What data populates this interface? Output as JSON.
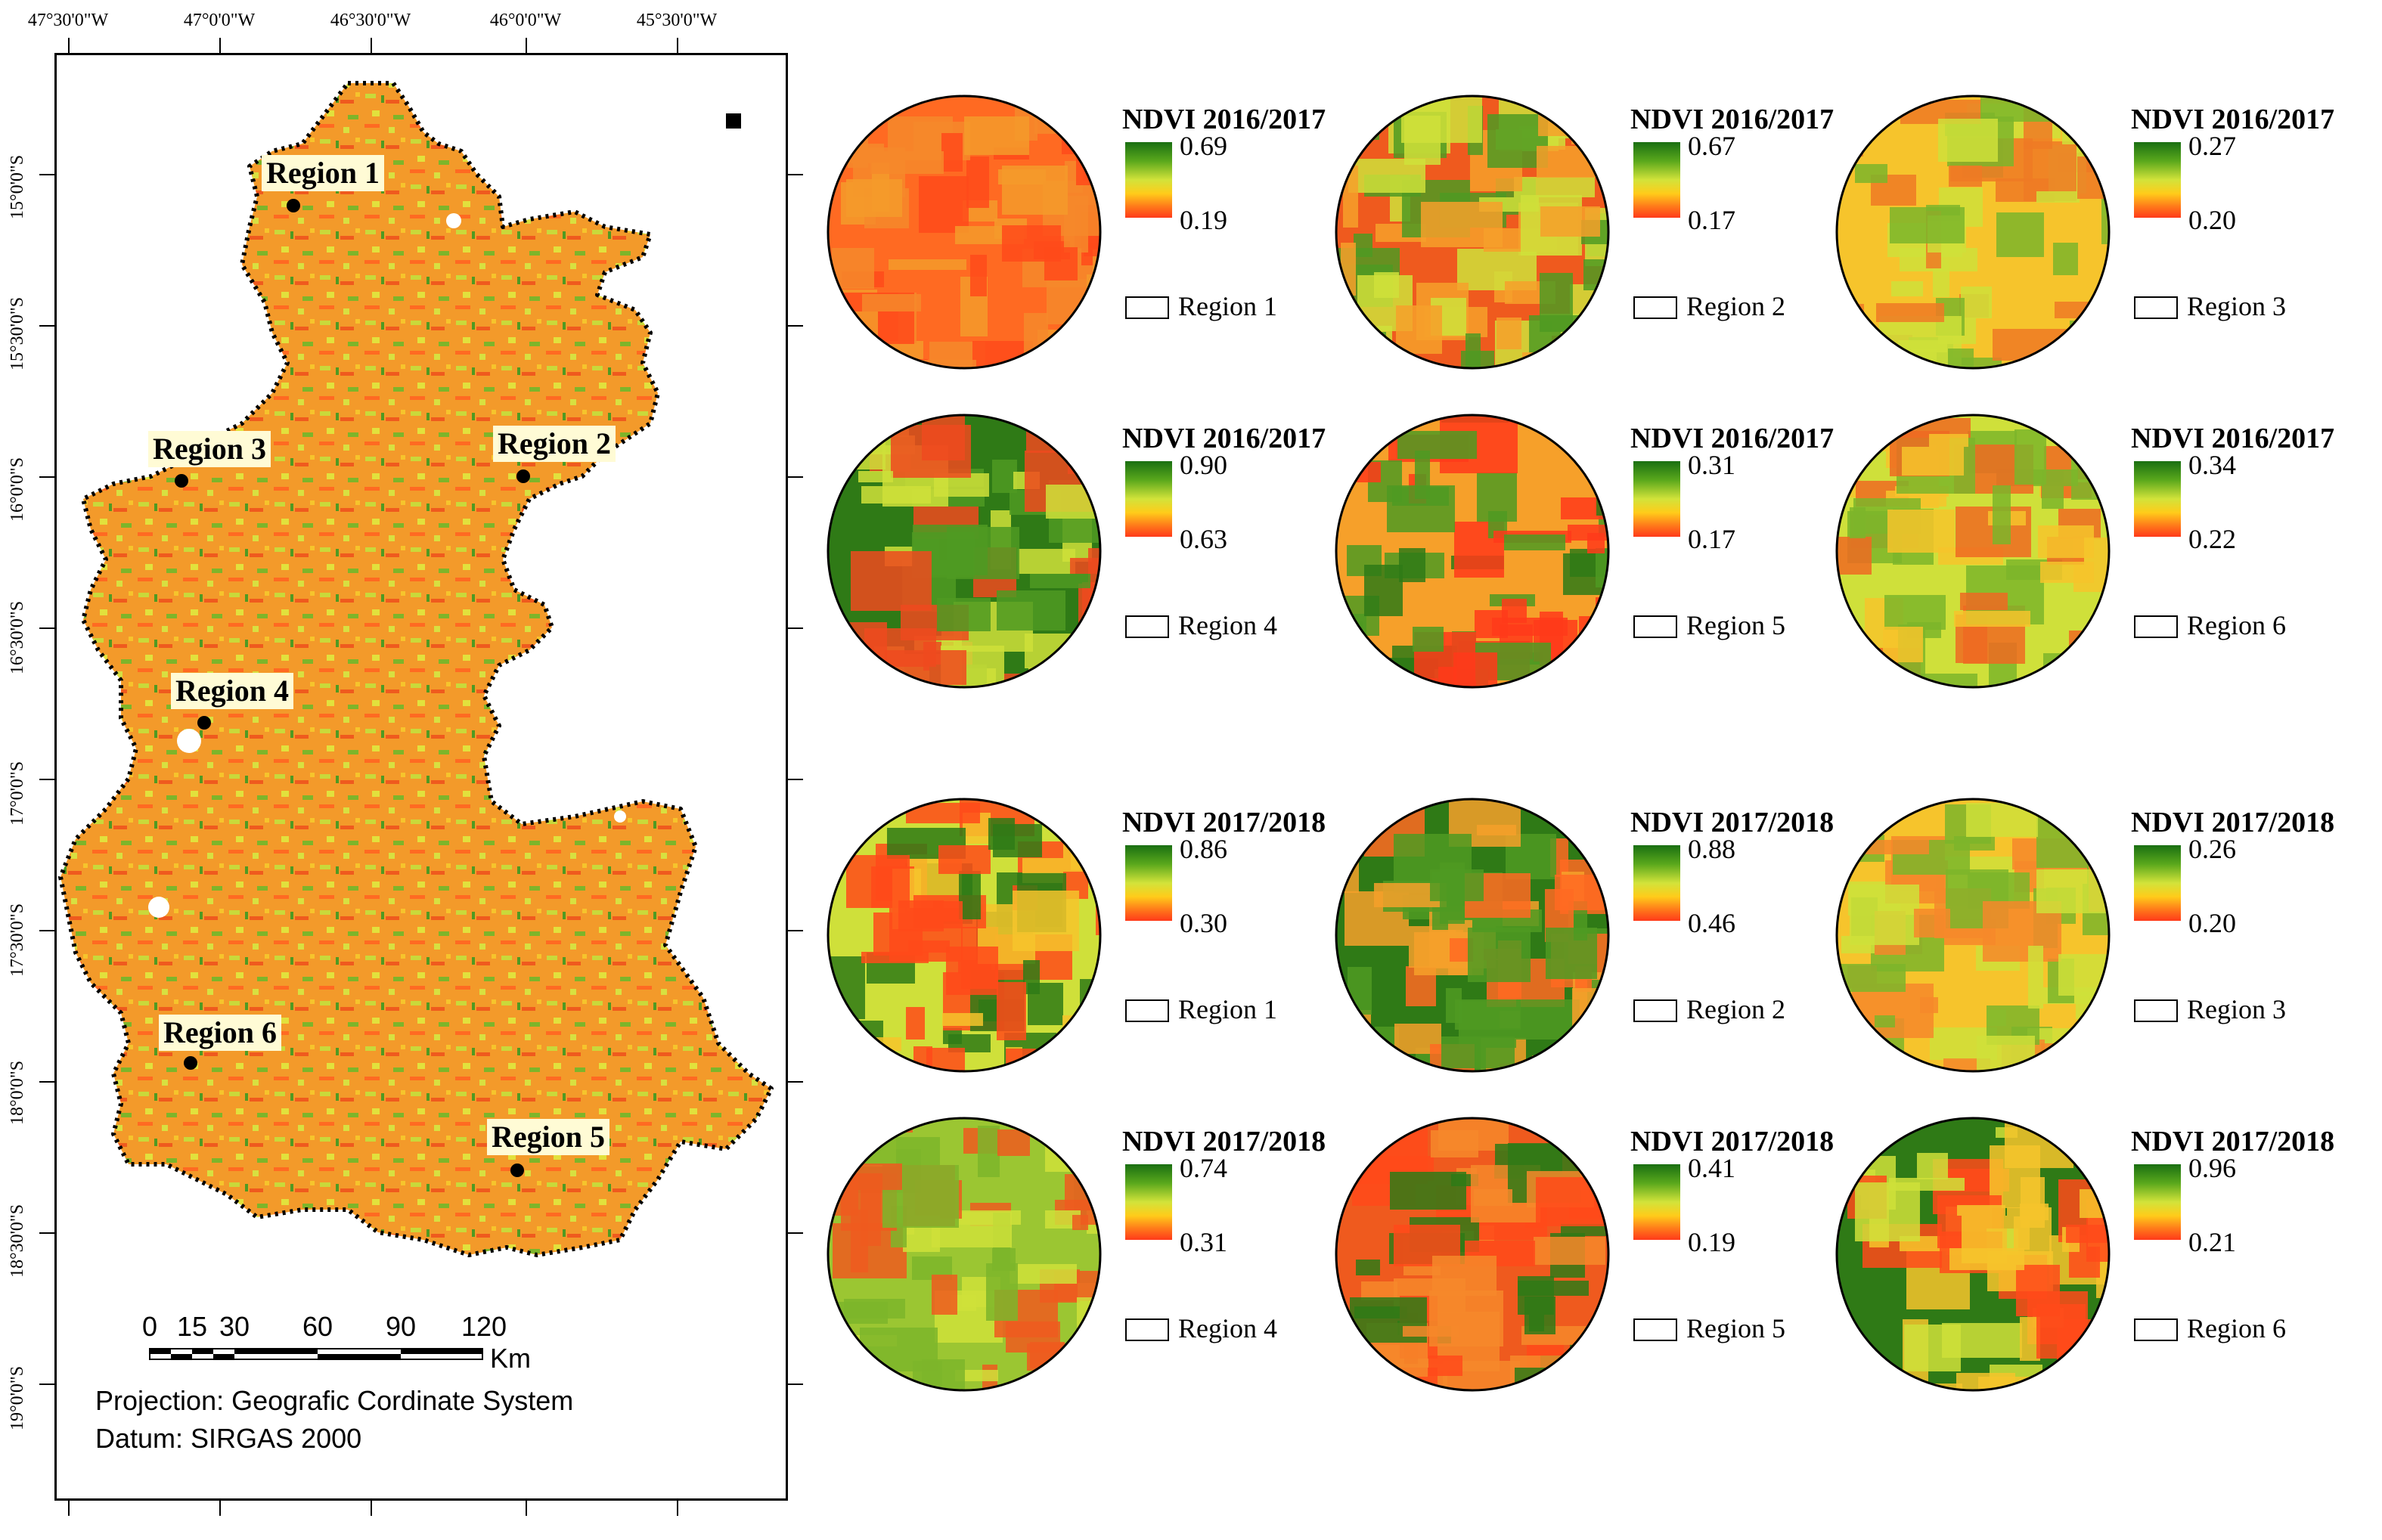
{
  "map": {
    "lon_labels": [
      "47°30'0\"W",
      "47°0'0\"W",
      "46°30'0\"W",
      "46°0'0\"W",
      "45°30'0\"W"
    ],
    "lat_labels": [
      "15°0'0\"S",
      "15°30'0\"S",
      "16°0'0\"S",
      "16°30'0\"S",
      "17°0'0\"S",
      "17°30'0\"S",
      "18°0'0\"S",
      "18°30'0\"S",
      "19°0'0\"S"
    ],
    "regions": [
      {
        "label": "Region 1"
      },
      {
        "label": "Region 2"
      },
      {
        "label": "Region 3"
      },
      {
        "label": "Region 4"
      },
      {
        "label": "Region 5"
      },
      {
        "label": "Region 6"
      }
    ],
    "scale_numbers": [
      "0",
      "15",
      "30",
      "60",
      "90",
      "120"
    ],
    "scale_unit": "Km",
    "projection": "Projection: Geografic Cordinate System",
    "datum": "Datum: SIRGAS 2000",
    "colors": {
      "high": "#1a6f12",
      "mid": "#d2e33a",
      "low": "#ff3a1a",
      "boundary": "#000000"
    }
  },
  "panels": [
    {
      "title": "NDVI 2016/2017",
      "max": "0.69",
      "min": "0.19",
      "region": "Region 1"
    },
    {
      "title": "NDVI 2016/2017",
      "max": "0.67",
      "min": "0.17",
      "region": "Region 2"
    },
    {
      "title": "NDVI 2016/2017",
      "max": "0.27",
      "min": "0.20",
      "region": "Region 3"
    },
    {
      "title": "NDVI 2016/2017",
      "max": "0.90",
      "min": "0.63",
      "region": "Region 4"
    },
    {
      "title": "NDVI 2016/2017",
      "max": "0.31",
      "min": "0.17",
      "region": "Region 5"
    },
    {
      "title": "NDVI 2016/2017",
      "max": "0.34",
      "min": "0.22",
      "region": "Region 6"
    },
    {
      "title": "NDVI 2017/2018",
      "max": "0.86",
      "min": "0.30",
      "region": "Region 1"
    },
    {
      "title": "NDVI 2017/2018",
      "max": "0.88",
      "min": "0.46",
      "region": "Region 2"
    },
    {
      "title": "NDVI 2017/2018",
      "max": "0.26",
      "min": "0.20",
      "region": "Region 3"
    },
    {
      "title": "NDVI 2017/2018",
      "max": "0.74",
      "min": "0.31",
      "region": "Region 4"
    },
    {
      "title": "NDVI 2017/2018",
      "max": "0.41",
      "min": "0.19",
      "region": "Region 5"
    },
    {
      "title": "NDVI 2017/2018",
      "max": "0.96",
      "min": "0.21",
      "region": "Region 6"
    }
  ]
}
